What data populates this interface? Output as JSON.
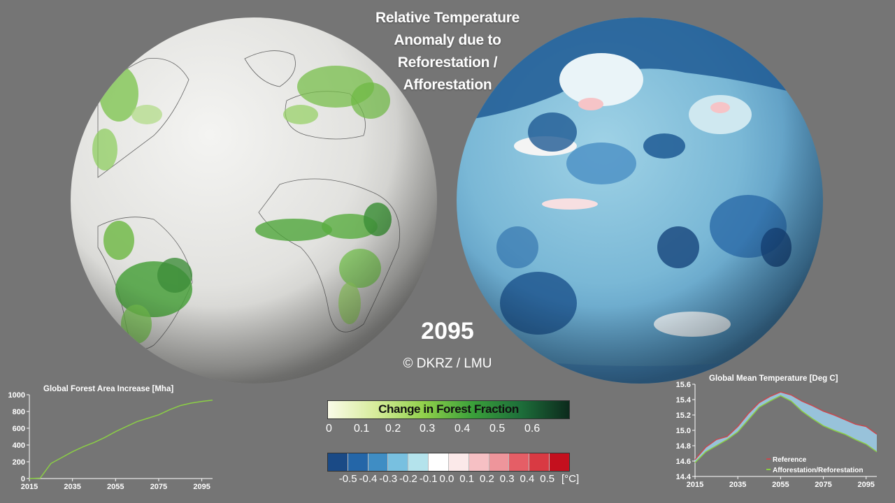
{
  "title_lines": [
    "Relative Temperature",
    "Anomaly due to",
    "Reforestation /",
    "Afforestation"
  ],
  "year": "2095",
  "copyright": "© DKRZ / LMU",
  "forest_colorbar": {
    "label": "Change in Forest Fraction",
    "ticks": [
      "0",
      "0.1",
      "0.2",
      "0.3",
      "0.4",
      "0.5",
      "0.6"
    ]
  },
  "temp_colorbar": {
    "ticks": [
      "-0.5",
      "-0.4",
      "-0.3",
      "-0.2",
      "-0.1",
      "0.0",
      "0.1",
      "0.2",
      "0.3",
      "0.4",
      "0.5"
    ],
    "unit": "[°C]",
    "colors": [
      "#1a4a86",
      "#2466a8",
      "#3f8dc4",
      "#78c0e0",
      "#b4e3ec",
      "#ffffff",
      "#fbe9e9",
      "#f6c0c4",
      "#ee959b",
      "#e55e66",
      "#d93a43",
      "#c4101e"
    ]
  },
  "chart_data": [
    {
      "type": "line",
      "title": "Global Forest Area Increase [Mha]",
      "x": [
        2015,
        2020,
        2025,
        2030,
        2035,
        2040,
        2045,
        2050,
        2055,
        2060,
        2065,
        2070,
        2075,
        2080,
        2085,
        2090,
        2095,
        2100
      ],
      "series": [
        {
          "values": [
            0,
            5,
            180,
            250,
            320,
            380,
            430,
            490,
            560,
            620,
            680,
            720,
            760,
            820,
            870,
            900,
            920,
            935
          ]
        }
      ],
      "xticks": [
        "2015",
        "2035",
        "2055",
        "2075",
        "2095"
      ],
      "yticks": [
        "0",
        "200",
        "400",
        "600",
        "800",
        "1000"
      ],
      "xlim": [
        2015,
        2100
      ],
      "ylim": [
        0,
        1000
      ],
      "line_color": "#8bcf45"
    },
    {
      "type": "line",
      "title": "Global Mean Temperature [Deg C]",
      "x": [
        2015,
        2020,
        2025,
        2030,
        2035,
        2040,
        2045,
        2050,
        2055,
        2060,
        2065,
        2070,
        2075,
        2080,
        2085,
        2090,
        2095,
        2100
      ],
      "series": [
        {
          "name": "Reference",
          "values": [
            14.62,
            14.78,
            14.88,
            14.92,
            15.05,
            15.22,
            15.36,
            15.44,
            15.5,
            15.46,
            15.38,
            15.32,
            15.25,
            15.2,
            15.14,
            15.08,
            15.05,
            14.95
          ]
        },
        {
          "name": "Afforestation/Reforestation",
          "values": [
            14.58,
            14.72,
            14.8,
            14.88,
            14.98,
            15.14,
            15.3,
            15.38,
            15.45,
            15.38,
            15.25,
            15.15,
            15.06,
            15.0,
            14.95,
            14.88,
            14.82,
            14.72
          ]
        }
      ],
      "xticks": [
        "2015",
        "2035",
        "2055",
        "2075",
        "2095"
      ],
      "yticks": [
        "14.4",
        "14.6",
        "14.8",
        "15.0",
        "15.2",
        "15.4",
        "15.6"
      ],
      "xlim": [
        2015,
        2100
      ],
      "ylim": [
        14.4,
        15.6
      ],
      "colors": {
        "Reference": "#c8484e",
        "Afforestation/Reforestation": "#8bcf45",
        "fill": "#9ccbe6"
      }
    }
  ]
}
